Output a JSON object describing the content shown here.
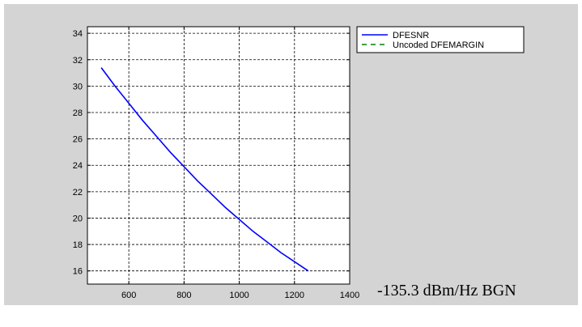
{
  "colors": {
    "figure_bg": "#d4d4d4",
    "axes_bg": "#ffffff",
    "axis": "#000000",
    "grid": "#000000",
    "dfesnr": "#0000ff",
    "uncoded": "#008000"
  },
  "annotation": "-135.3 dBm/Hz BGN",
  "chart_data": {
    "type": "line",
    "title": "",
    "xlabel": "",
    "ylabel": "",
    "xlim": [
      450,
      1400
    ],
    "ylim": [
      15,
      34.5
    ],
    "xticks": [
      600,
      800,
      1000,
      1200,
      1400
    ],
    "yticks": [
      16,
      18,
      20,
      22,
      24,
      26,
      28,
      30,
      32,
      34
    ],
    "grid": true,
    "legend_position": "outside-top-right",
    "series": [
      {
        "name": "DFESNR",
        "color": "#0000ff",
        "style": "solid",
        "x": [
          500,
          550,
          600,
          650,
          700,
          750,
          800,
          850,
          900,
          950,
          1000,
          1050,
          1100,
          1150,
          1200,
          1250
        ],
        "y": [
          31.4,
          30.0,
          28.7,
          27.4,
          26.2,
          25.0,
          23.9,
          22.8,
          21.8,
          20.8,
          19.9,
          19.0,
          18.2,
          17.4,
          16.7,
          16.0
        ]
      },
      {
        "name": "Uncoded DFEMARGIN",
        "color": "#008000",
        "style": "dashed",
        "x": [],
        "y": []
      }
    ]
  }
}
